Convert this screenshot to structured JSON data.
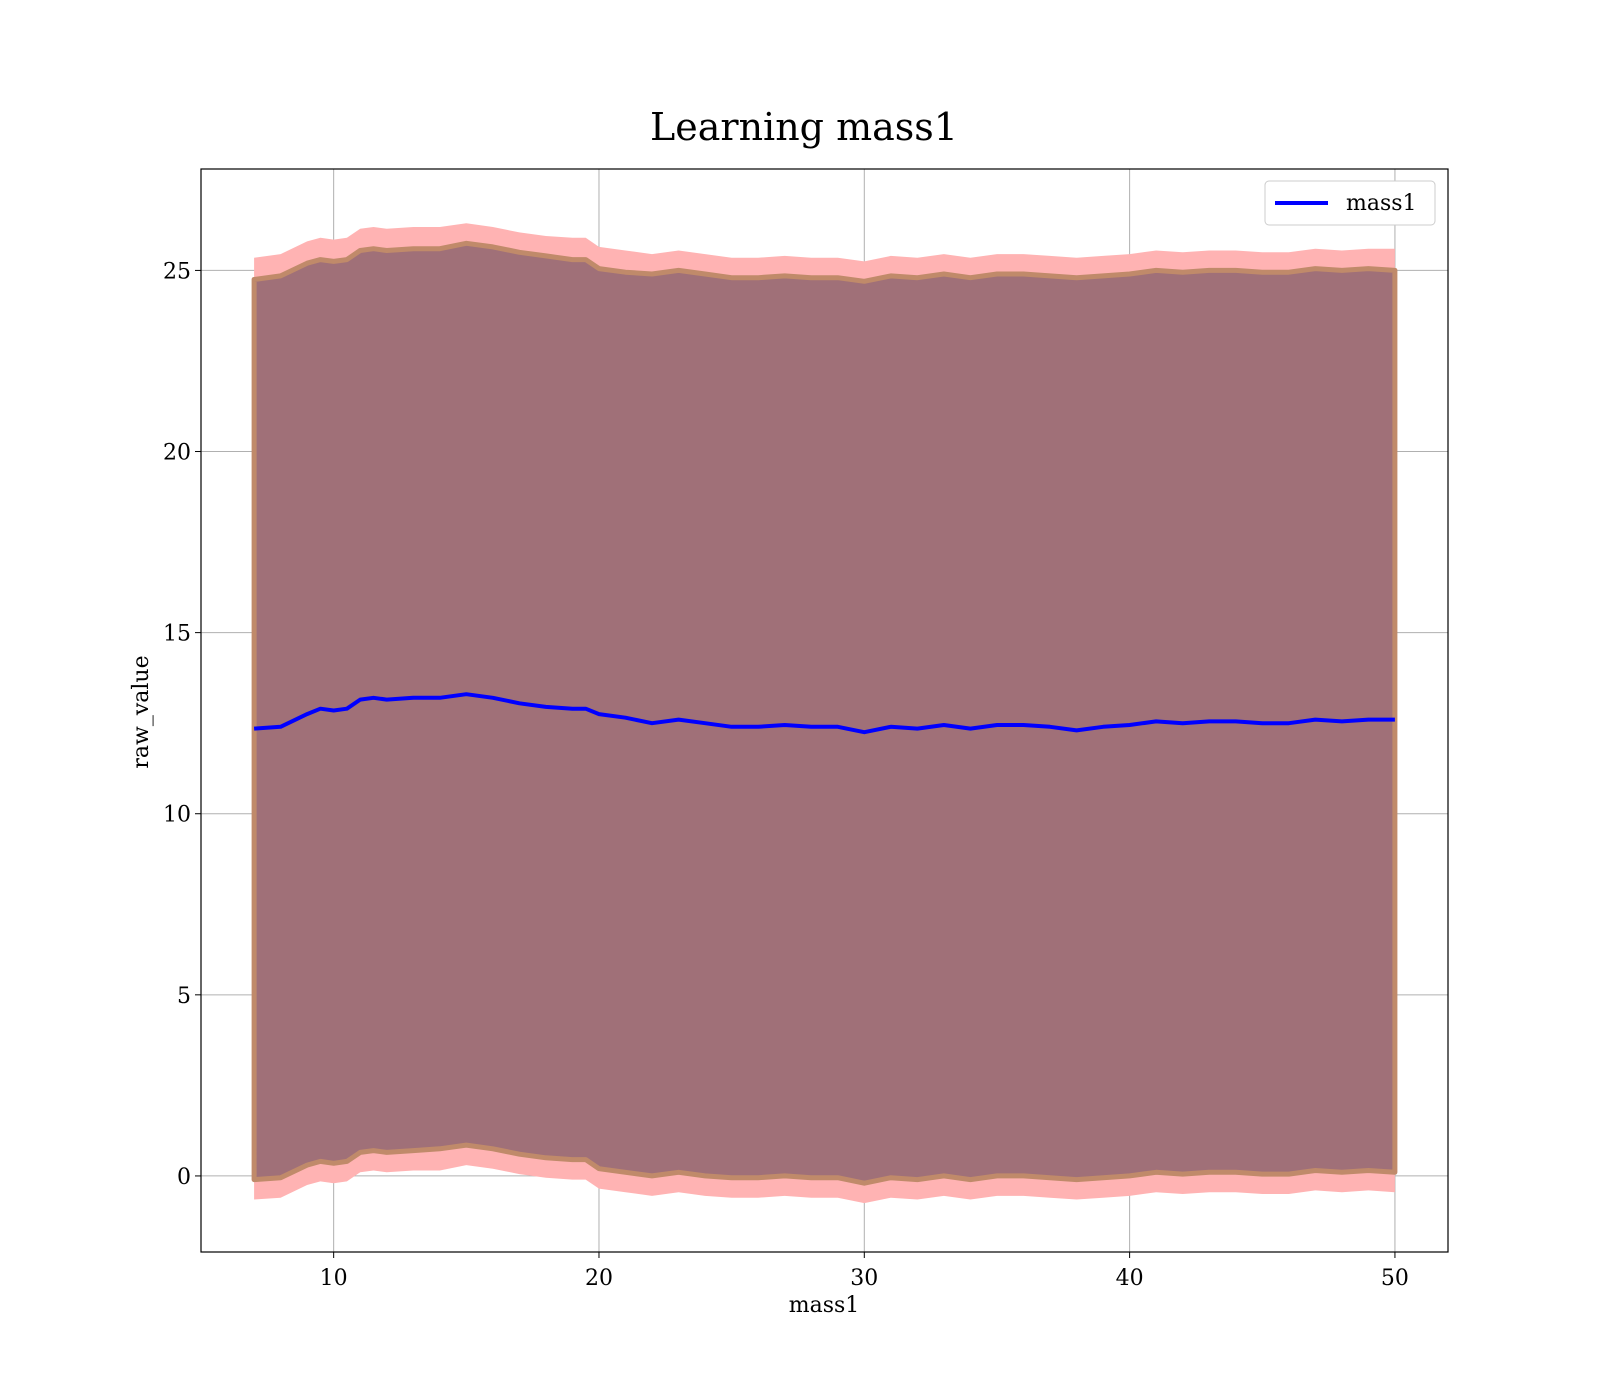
{
  "chart_data": {
    "type": "area",
    "title": "Learning mass1",
    "xlabel": "mass1",
    "ylabel": "raw_value",
    "xlim": [
      5,
      52
    ],
    "ylim": [
      -2.1,
      27.8
    ],
    "xticks": [
      10,
      20,
      30,
      40,
      50
    ],
    "yticks": [
      0,
      5,
      10,
      15,
      20,
      25
    ],
    "grid": true,
    "legend_position": "top-right",
    "colors": {
      "line": "#0000ff",
      "outer_band": "#ffb3b3",
      "inner_band": "#a07078",
      "inner_band_edge": "#c08a6a",
      "grid": "#b0b0b0"
    },
    "series": [
      {
        "name": "mass1",
        "x": [
          7.0,
          8.0,
          9.0,
          9.5,
          10.0,
          10.5,
          11.0,
          11.5,
          12.0,
          13.0,
          14.0,
          15.0,
          16.0,
          17.0,
          18.0,
          19.0,
          19.5,
          20.0,
          21.0,
          22.0,
          23.0,
          24.0,
          25.0,
          26.0,
          27.0,
          28.0,
          29.0,
          30.0,
          31.0,
          32.0,
          33.0,
          34.0,
          35.0,
          36.0,
          37.0,
          38.0,
          39.0,
          40.0,
          41.0,
          42.0,
          43.0,
          44.0,
          45.0,
          46.0,
          47.0,
          48.0,
          49.0,
          50.0
        ],
        "y": [
          12.35,
          12.4,
          12.75,
          12.9,
          12.85,
          12.9,
          13.15,
          13.2,
          13.15,
          13.2,
          13.2,
          13.3,
          13.2,
          13.05,
          12.95,
          12.9,
          12.9,
          12.75,
          12.65,
          12.5,
          12.6,
          12.5,
          12.4,
          12.4,
          12.45,
          12.4,
          12.4,
          12.25,
          12.4,
          12.35,
          12.45,
          12.35,
          12.45,
          12.45,
          12.4,
          12.3,
          12.4,
          12.45,
          12.55,
          12.5,
          12.55,
          12.55,
          12.5,
          12.5,
          12.6,
          12.55,
          12.6,
          12.6
        ]
      }
    ],
    "bands": [
      {
        "kind": "outer",
        "upper": [
          25.35,
          25.45,
          25.8,
          25.9,
          25.85,
          25.9,
          26.15,
          26.2,
          26.15,
          26.2,
          26.2,
          26.3,
          26.2,
          26.05,
          25.95,
          25.9,
          25.9,
          25.65,
          25.55,
          25.45,
          25.55,
          25.45,
          25.35,
          25.35,
          25.4,
          25.35,
          25.35,
          25.25,
          25.4,
          25.35,
          25.45,
          25.35,
          25.45,
          25.45,
          25.4,
          25.35,
          25.4,
          25.45,
          25.55,
          25.5,
          25.55,
          25.55,
          25.5,
          25.5,
          25.6,
          25.55,
          25.6,
          25.6
        ],
        "lower": [
          -0.65,
          -0.6,
          -0.25,
          -0.15,
          -0.2,
          -0.15,
          0.1,
          0.15,
          0.1,
          0.15,
          0.15,
          0.3,
          0.2,
          0.05,
          -0.05,
          -0.1,
          -0.1,
          -0.35,
          -0.45,
          -0.55,
          -0.45,
          -0.55,
          -0.6,
          -0.6,
          -0.55,
          -0.6,
          -0.6,
          -0.75,
          -0.6,
          -0.65,
          -0.55,
          -0.65,
          -0.55,
          -0.55,
          -0.6,
          -0.65,
          -0.6,
          -0.55,
          -0.45,
          -0.5,
          -0.45,
          -0.45,
          -0.5,
          -0.5,
          -0.4,
          -0.45,
          -0.4,
          -0.45
        ]
      },
      {
        "kind": "inner",
        "upper": [
          24.75,
          24.85,
          25.2,
          25.3,
          25.25,
          25.3,
          25.55,
          25.6,
          25.55,
          25.6,
          25.6,
          25.75,
          25.65,
          25.5,
          25.4,
          25.3,
          25.3,
          25.05,
          24.95,
          24.9,
          25.0,
          24.9,
          24.8,
          24.8,
          24.85,
          24.8,
          24.8,
          24.7,
          24.85,
          24.8,
          24.9,
          24.8,
          24.9,
          24.9,
          24.85,
          24.8,
          24.85,
          24.9,
          25.0,
          24.95,
          25.0,
          25.0,
          24.95,
          24.95,
          25.05,
          25.0,
          25.05,
          25.0
        ],
        "lower": [
          -0.1,
          -0.05,
          0.3,
          0.4,
          0.35,
          0.4,
          0.65,
          0.7,
          0.65,
          0.7,
          0.75,
          0.85,
          0.75,
          0.6,
          0.5,
          0.45,
          0.45,
          0.2,
          0.1,
          0.0,
          0.1,
          0.0,
          -0.05,
          -0.05,
          0.0,
          -0.05,
          -0.05,
          -0.2,
          -0.05,
          -0.1,
          0.0,
          -0.1,
          0.0,
          0.0,
          -0.05,
          -0.1,
          -0.05,
          0.0,
          0.1,
          0.05,
          0.1,
          0.1,
          0.05,
          0.05,
          0.15,
          0.1,
          0.15,
          0.1
        ]
      }
    ]
  }
}
